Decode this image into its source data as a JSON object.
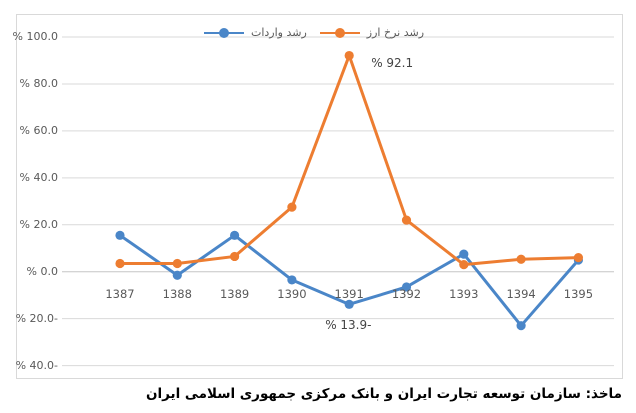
{
  "caption": "ماخذ: سازمان توسعه تجارت ایران و بانک مرکزی جمهوری اسلامی ایران",
  "chart_data": {
    "type": "line",
    "categories": [
      "1387",
      "1388",
      "1389",
      "1390",
      "1391",
      "1392",
      "1393",
      "1394",
      "1395"
    ],
    "series": [
      {
        "name": "رشد واردات",
        "color": "#4A86C8",
        "values": [
          15.5,
          -1.5,
          15.5,
          -3.5,
          -13.9,
          -6.5,
          7.5,
          -23.0,
          5.0
        ]
      },
      {
        "name": "رشد نرخ ارز",
        "color": "#ED7D31",
        "values": [
          3.5,
          3.5,
          6.5,
          27.5,
          92.1,
          22.0,
          3.0,
          5.3,
          6.0
        ]
      }
    ],
    "title": "",
    "xlabel": "",
    "ylabel": "",
    "ylim": [
      -40,
      100
    ],
    "grid": true,
    "legend_position": "top",
    "y_ticks": [
      {
        "value": 100,
        "label": "% 100.0"
      },
      {
        "value": 80,
        "label": "% 80.0"
      },
      {
        "value": 60,
        "label": "% 60.0"
      },
      {
        "value": 40,
        "label": "% 40.0"
      },
      {
        "value": 20,
        "label": "% 20.0"
      },
      {
        "value": 0,
        "label": "% 0.0"
      },
      {
        "value": -20,
        "label": "% 20.0-"
      },
      {
        "value": -40,
        "label": "% 40.0-"
      }
    ],
    "annotations": [
      {
        "text": "% 92.1",
        "series": 1,
        "category": "1391",
        "value": 92.1
      },
      {
        "text": "% 13.9-",
        "series": 0,
        "category": "1391",
        "value": -13.9
      }
    ]
  }
}
